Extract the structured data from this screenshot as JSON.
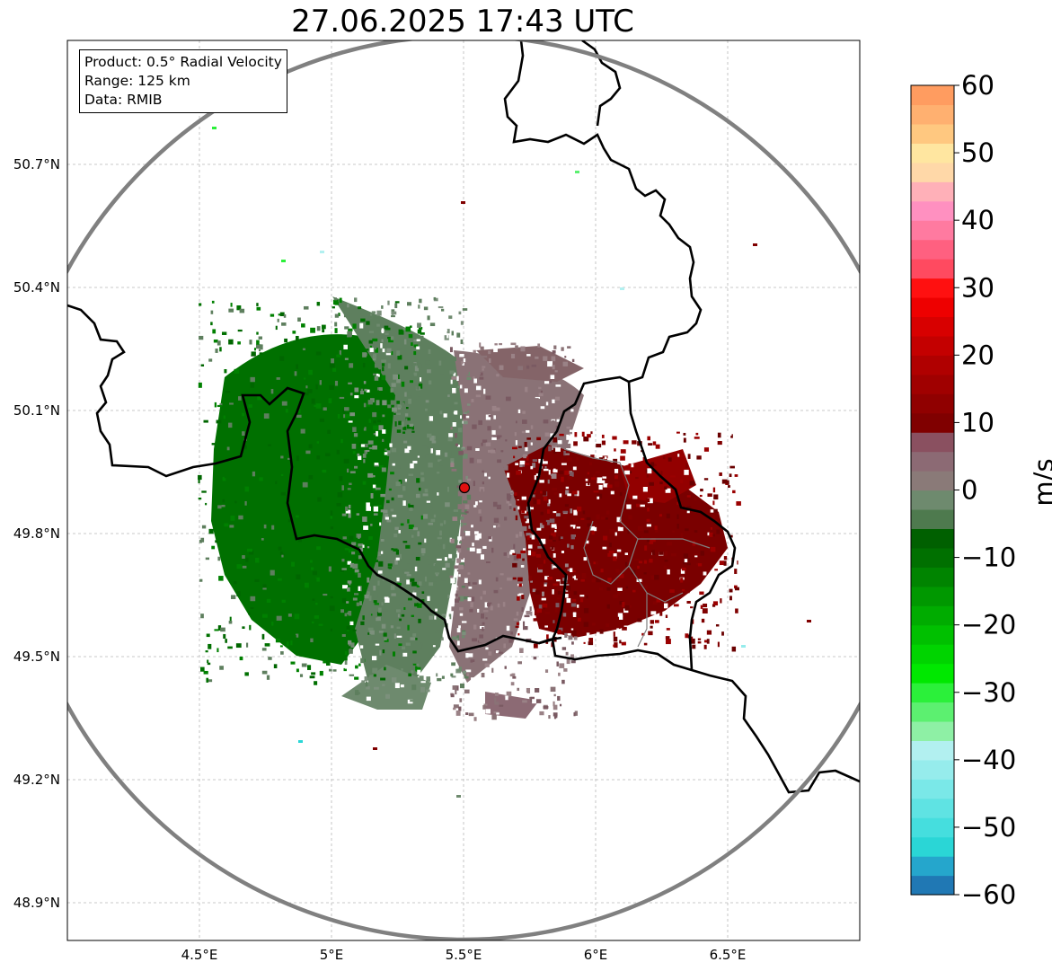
{
  "title": "27.06.2025 17:43 UTC",
  "info": {
    "product": "Product: 0.5° Radial Velocity",
    "range": "Range: 125 km",
    "data": "Data: RMIB"
  },
  "axes": {
    "lat_ticks": [
      "50.7°N",
      "50.4°N",
      "50.1°N",
      "49.8°N",
      "49.5°N",
      "49.2°N",
      "48.9°N"
    ],
    "lon_ticks": [
      "4.5°E",
      "5°E",
      "5.5°E",
      "6°E",
      "6.5°E"
    ],
    "lat_values": [
      50.7,
      50.4,
      50.1,
      49.8,
      49.5,
      49.2,
      48.9
    ],
    "lon_values": [
      4.5,
      5.0,
      5.5,
      6.0,
      6.5
    ],
    "lon_range": [
      4.0,
      7.0
    ],
    "lat_range": [
      48.8,
      51.0
    ]
  },
  "radar_site": {
    "lon": 5.505,
    "lat": 49.915,
    "range_km": 125
  },
  "colorbar": {
    "label": "m/s",
    "min": -60,
    "max": 60,
    "ticks": [
      "60",
      "50",
      "40",
      "30",
      "20",
      "10",
      "0",
      "−10",
      "−20",
      "−30",
      "−40",
      "−50",
      "−60"
    ],
    "colors": [
      "#2078b4",
      "#25a6cc",
      "#2ad6d6",
      "#45dede",
      "#5fe3e3",
      "#7ae8e8",
      "#96ecec",
      "#b2f0f0",
      "#8ef0a5",
      "#5cf070",
      "#2bf03a",
      "#00e800",
      "#00d400",
      "#00c000",
      "#00ac00",
      "#009800",
      "#008400",
      "#007000",
      "#006000",
      "#4e7a4e",
      "#6e8a6e",
      "#8a7a78",
      "#8c6a74",
      "#8a5060",
      "#800000",
      "#900000",
      "#a00000",
      "#b00000",
      "#c40000",
      "#d80000",
      "#ee0000",
      "#ff1010",
      "#ff4a60",
      "#ff6080",
      "#ff7aa0",
      "#ff90c0",
      "#ffb0b8",
      "#ffd8a8",
      "#ffe6a0",
      "#ffc880",
      "#ffb070",
      "#ff9c60"
    ]
  },
  "borders_color": "#000000",
  "range_ring_color": "#808080"
}
